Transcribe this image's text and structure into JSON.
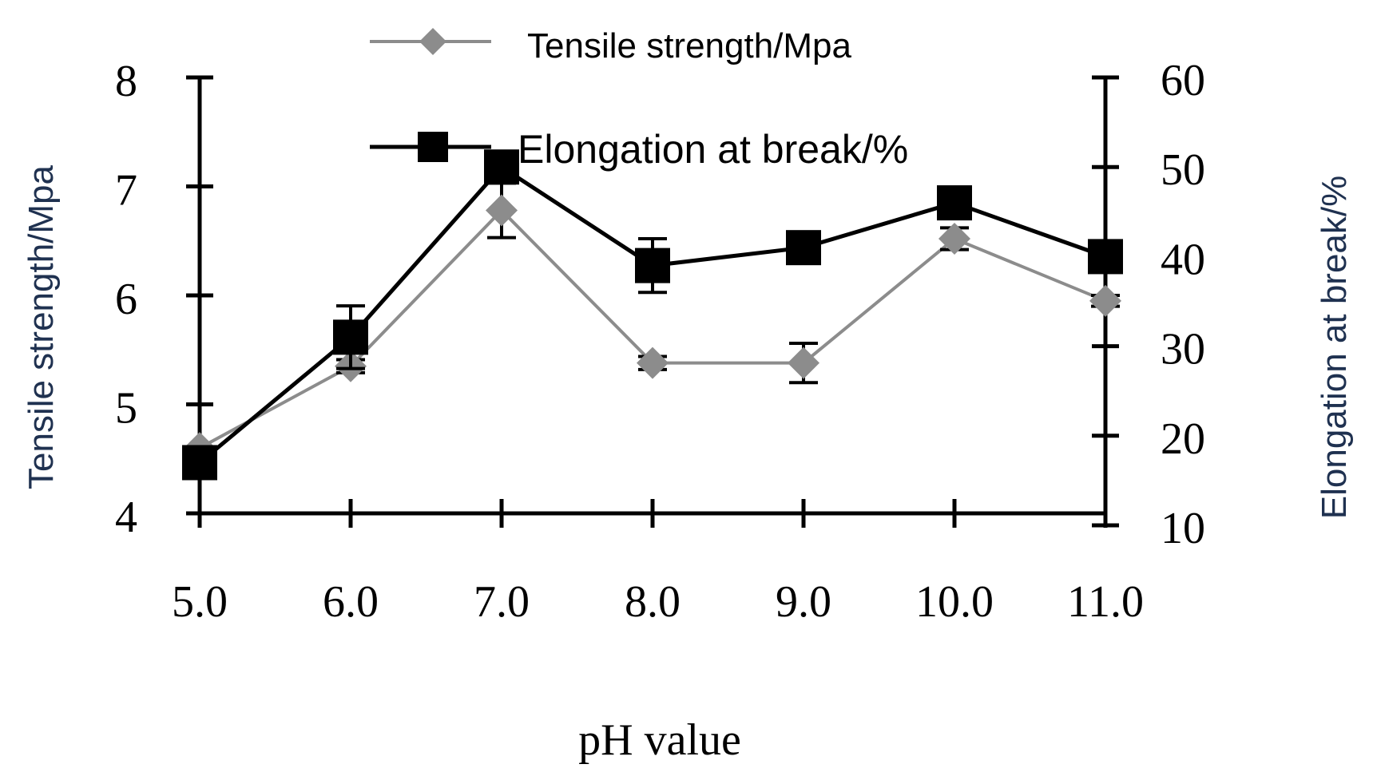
{
  "chart_data": {
    "type": "line",
    "x": [
      5.0,
      6.0,
      7.0,
      8.0,
      9.0,
      10.0,
      11.0
    ],
    "x_tick_labels": [
      "5.0",
      "6.0",
      "7.0",
      "8.0",
      "9.0",
      "10.0",
      "11.0"
    ],
    "xlabel": "pH value",
    "ylabel_left": "Tensile strength/Mpa",
    "ylabel_right": "Elongation at break/%",
    "ylim_left": [
      4,
      8
    ],
    "ylim_right": [
      10,
      60
    ],
    "y_ticks_left": [
      "4",
      "5",
      "6",
      "7",
      "8"
    ],
    "y_ticks_right": [
      "10",
      "20",
      "30",
      "40",
      "50",
      "60"
    ],
    "series": [
      {
        "name": "Tensile strength/Mpa",
        "axis": "left",
        "marker": "diamond",
        "color": "#8c8c8c",
        "values": [
          4.6,
          5.35,
          6.78,
          5.38,
          5.38,
          6.52,
          5.95
        ],
        "errors": [
          0.0,
          0.06,
          0.25,
          0.06,
          0.18,
          0.1,
          0.05
        ]
      },
      {
        "name": "Elongation at break/%",
        "axis": "right",
        "marker": "square",
        "color": "#000000",
        "values": [
          17,
          31,
          50,
          39,
          41,
          46,
          40
        ],
        "errors": [
          0,
          3.5,
          1.5,
          3,
          1,
          1,
          1
        ]
      }
    ]
  },
  "colors": {
    "axis": "#000000",
    "ylabel_left": "#1f3150",
    "ylabel_right": "#1f3150"
  }
}
